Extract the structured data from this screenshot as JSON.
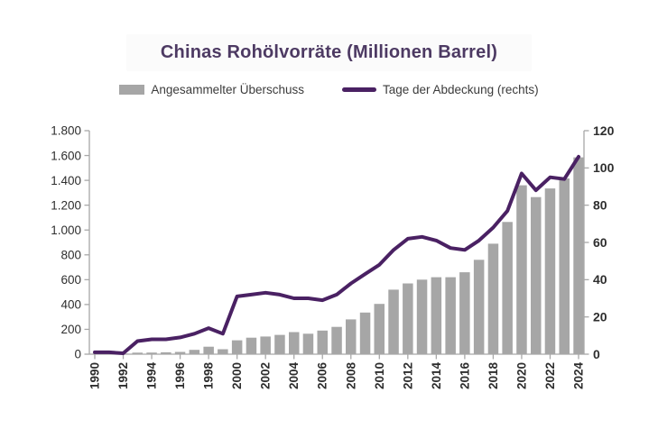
{
  "title": "Chinas Rohölvorräte (Millionen Barrel)",
  "legend": {
    "bar_label": "Angesammelter Überschuss",
    "line_label": "Tage der Abdeckung (rechts)"
  },
  "colors": {
    "bar": "#a6a6a6",
    "line": "#4a2163",
    "title": "#4d3a63",
    "axis": "#a8a8a8",
    "tick_text_left": "#474747",
    "tick_text": "#262626"
  },
  "chart_data": {
    "type": "bar",
    "subtype": "combo bar + line, dual axis",
    "title": "Chinas Rohölvorräte (Millionen Barrel)",
    "categories": [
      1990,
      1991,
      1992,
      1993,
      1994,
      1995,
      1996,
      1997,
      1998,
      1999,
      2000,
      2001,
      2002,
      2003,
      2004,
      2005,
      2006,
      2007,
      2008,
      2009,
      2010,
      2011,
      2012,
      2013,
      2014,
      2015,
      2016,
      2017,
      2018,
      2019,
      2020,
      2021,
      2022,
      2023,
      2024
    ],
    "series": [
      {
        "name": "Angesammelter Überschuss",
        "type": "bar",
        "axis": "left",
        "values": [
          0,
          0,
          5,
          12,
          13,
          15,
          18,
          35,
          60,
          40,
          112,
          133,
          142,
          155,
          178,
          165,
          190,
          220,
          280,
          335,
          405,
          520,
          570,
          600,
          620,
          620,
          660,
          760,
          890,
          1065,
          1360,
          1265,
          1335,
          1415,
          1585
        ]
      },
      {
        "name": "Tage der Abdeckung (rechts)",
        "type": "line",
        "axis": "right",
        "values": [
          1,
          1,
          0.5,
          7,
          8,
          8,
          9,
          11,
          14,
          11,
          31,
          32,
          33,
          32,
          30,
          30,
          29,
          32,
          38,
          43,
          48,
          56,
          62,
          63,
          61,
          57,
          56,
          61,
          68,
          77,
          97,
          88,
          95,
          94,
          106
        ]
      }
    ],
    "left_axis": {
      "min": 0,
      "max": 1800,
      "step": 200,
      "tick_labels": [
        "0",
        "200",
        "400",
        "600",
        "800",
        "1.000",
        "1.200",
        "1.400",
        "1.600",
        "1.800"
      ]
    },
    "right_axis": {
      "min": 0,
      "max": 120,
      "step": 20,
      "tick_labels": [
        "0",
        "20",
        "40",
        "60",
        "80",
        "100",
        "120"
      ]
    },
    "x_tick_years": [
      1990,
      1992,
      1994,
      1996,
      1998,
      2000,
      2002,
      2004,
      2006,
      2008,
      2010,
      2012,
      2014,
      2016,
      2018,
      2020,
      2022,
      2024
    ],
    "grid": false,
    "legend_position": "top"
  }
}
